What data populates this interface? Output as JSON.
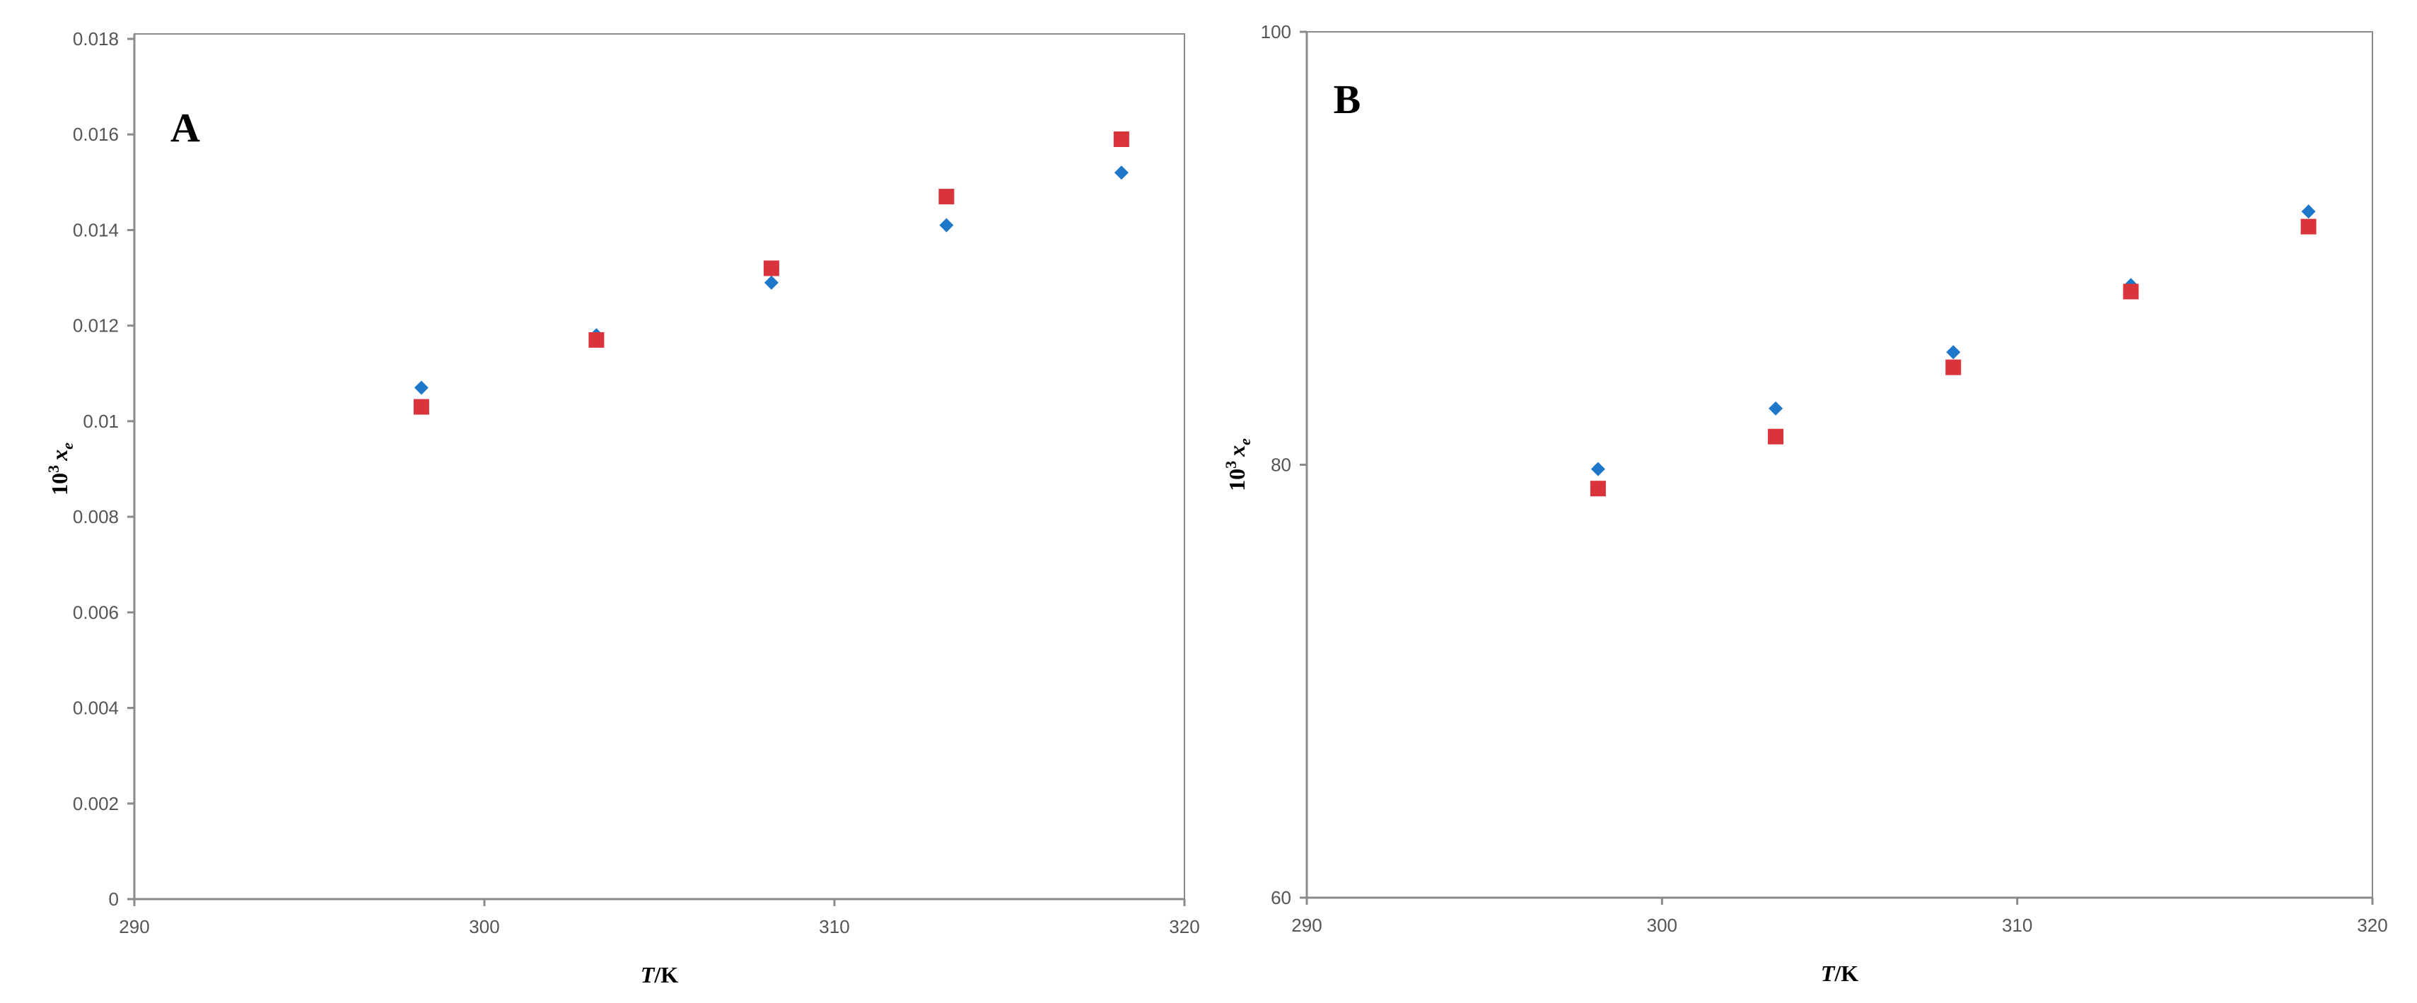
{
  "chart_data": [
    {
      "type": "scatter",
      "panel_label": "A",
      "xlabel_italic": "T",
      "xlabel_rest": "/K",
      "ylabel_base": "10",
      "ylabel_exp": "3",
      "ylabel_var": "x",
      "ylabel_sub": "e",
      "xlim": [
        290,
        320
      ],
      "ylim": [
        0,
        0.018
      ],
      "x_ticks": [
        "290",
        "300",
        "310",
        "320"
      ],
      "y_ticks": [
        "0",
        "0.002",
        "0.004",
        "0.006",
        "0.008",
        "0.01",
        "0.012",
        "0.014",
        "0.016",
        "0.018"
      ],
      "grid": false,
      "legend": "none",
      "series": [
        {
          "marker": "diamond",
          "color": "#1f77c9",
          "x": [
            298.2,
            303.2,
            308.2,
            313.2,
            318.2
          ],
          "y": [
            0.0107,
            0.0118,
            0.0129,
            0.0141,
            0.0152
          ]
        },
        {
          "marker": "square",
          "color": "#d9343c",
          "x": [
            298.2,
            303.2,
            308.2,
            313.2,
            318.2
          ],
          "y": [
            0.0103,
            0.0117,
            0.0132,
            0.0147,
            0.0159
          ]
        }
      ]
    },
    {
      "type": "scatter",
      "panel_label": "B",
      "xlabel_italic": "T",
      "xlabel_rest": "/K",
      "ylabel_base": "10",
      "ylabel_exp": "3",
      "ylabel_var": "x",
      "ylabel_sub": "e",
      "xlim": [
        290,
        320
      ],
      "ylim": [
        60,
        100
      ],
      "x_ticks": [
        "290",
        "300",
        "310",
        "320"
      ],
      "y_ticks": [
        "60",
        "80",
        "100"
      ],
      "grid": false,
      "legend": "none",
      "series": [
        {
          "marker": "diamond",
          "color": "#1f77c9",
          "x": [
            298.2,
            303.2,
            308.2,
            313.2,
            318.2
          ],
          "y": [
            79.8,
            82.6,
            85.2,
            88.3,
            91.7
          ]
        },
        {
          "marker": "square",
          "color": "#d9343c",
          "x": [
            298.2,
            303.2,
            308.2,
            313.2,
            318.2
          ],
          "y": [
            78.9,
            81.3,
            84.5,
            88.0,
            91.0
          ]
        }
      ]
    }
  ]
}
